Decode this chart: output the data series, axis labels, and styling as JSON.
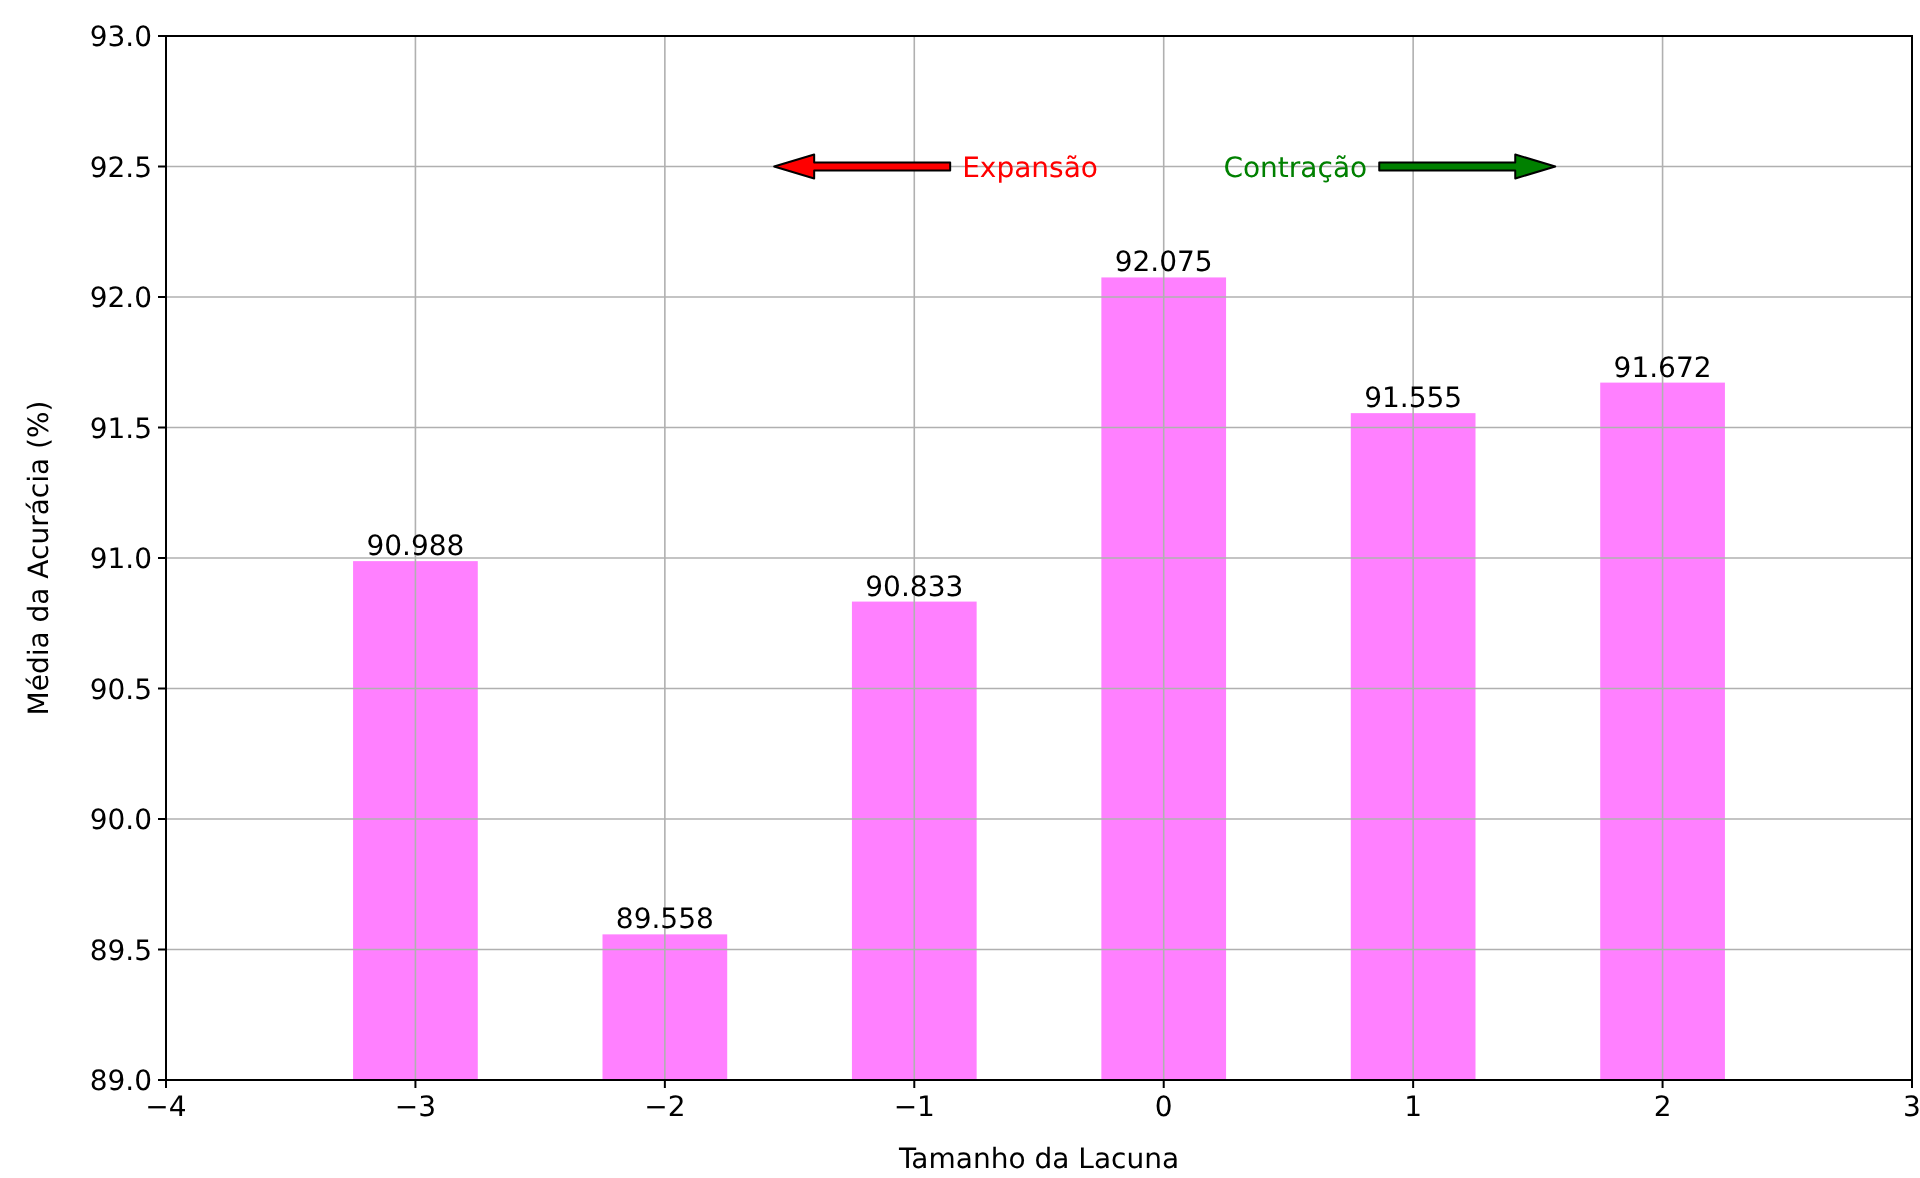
{
  "chart_data": {
    "type": "bar",
    "xlabel": "Tamanho da Lacuna",
    "ylabel": "Média da Acurácia (%)",
    "x": [
      -3,
      -2,
      -1,
      0,
      1,
      2
    ],
    "values": [
      90.988,
      89.558,
      90.833,
      92.075,
      91.555,
      91.672
    ],
    "color": "#ff80ff",
    "data_labels": true,
    "xlim": [
      -4,
      3
    ],
    "xticks": [
      {
        "value": -4,
        "label": "−4"
      },
      {
        "value": -3,
        "label": "−3"
      },
      {
        "value": -2,
        "label": "−2"
      },
      {
        "value": -1,
        "label": "−1"
      },
      0,
      1,
      2,
      3
    ],
    "ylim": [
      89,
      93
    ],
    "yticks": [
      {
        "value": 89,
        "label": "89.0"
      },
      {
        "value": 89.5,
        "label": "89.5"
      },
      {
        "value": 90,
        "label": "90.0"
      },
      {
        "value": 90.5,
        "label": "90.5"
      },
      {
        "value": 91,
        "label": "91.0"
      },
      {
        "value": 91.5,
        "label": "91.5"
      },
      {
        "value": 92,
        "label": "92.0"
      },
      {
        "value": 92.5,
        "label": "92.5"
      },
      {
        "value": 93,
        "label": "93.0"
      }
    ],
    "grid": true,
    "annotations": [
      "Expansão",
      "Contração"
    ]
  }
}
